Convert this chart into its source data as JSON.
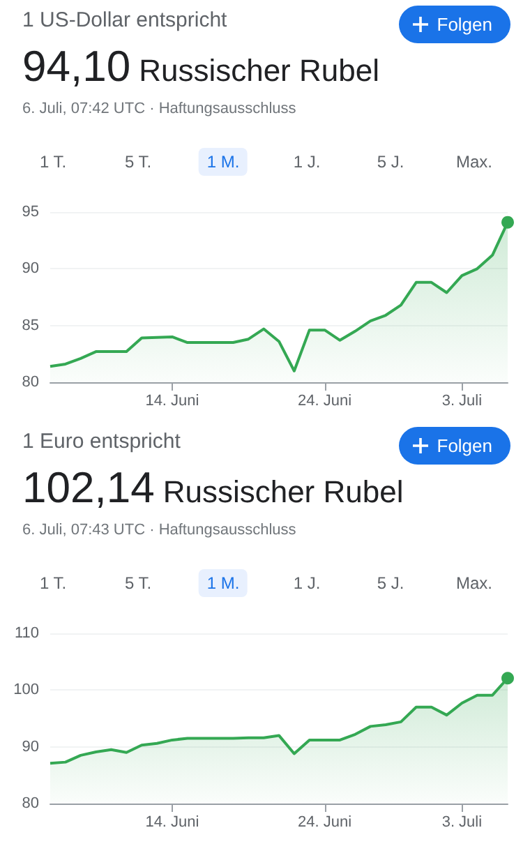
{
  "chart_data": [
    {
      "type": "area",
      "title": "1 US-Dollar entspricht",
      "subtitle": "94,10 Russischer Rubel",
      "annotations": [
        "6. Juli, 07:42 UTC · Haftungsausschluss",
        "Folgen",
        "1 T.",
        "5 T.",
        "1 M.",
        "1 J.",
        "5 J.",
        "Max."
      ],
      "x": [
        "--06-06",
        "--06-07",
        "--06-08",
        "--06-09",
        "--06-11",
        "--06-12",
        "--06-14",
        "--06-15",
        "--06-18",
        "--06-19",
        "--06-20",
        "--06-21",
        "--06-22",
        "--06-23",
        "--06-24",
        "--06-25",
        "--06-26",
        "--06-27",
        "--06-28",
        "--06-29",
        "--06-30",
        "--07-01",
        "--07-02",
        "--07-03",
        "--07-04",
        "--07-05",
        "--07-06"
      ],
      "series": [
        {
          "color": "#34a853",
          "values": [
            81.4,
            81.6,
            82.1,
            82.7,
            82.7,
            83.9,
            84.0,
            83.5,
            83.5,
            83.8,
            84.7,
            83.6,
            81.0,
            84.6,
            84.6,
            83.7,
            84.5,
            85.4,
            85.9,
            86.8,
            88.8,
            88.8,
            87.9,
            89.4,
            90.0,
            91.2,
            94.1
          ]
        }
      ],
      "xlim": [
        "--06-06",
        "--07-06"
      ],
      "xticks": [
        {
          "value": "--06-14",
          "label": "14. Juni"
        },
        {
          "value": "--06-24",
          "label": "24. Juni"
        },
        {
          "value": "--07-03",
          "label": "3. Juli"
        }
      ],
      "ylim": [
        80,
        95
      ],
      "yticks": [
        80,
        85,
        90,
        95
      ],
      "grid": "y",
      "marker": "none",
      "line_style": "solid"
    },
    {
      "type": "area",
      "title": "1 Euro entspricht",
      "subtitle": "102,14 Russischer Rubel",
      "annotations": [
        "6. Juli, 07:43 UTC · Haftungsausschluss",
        "Folgen",
        "1 T.",
        "5 T.",
        "1 M.",
        "1 J.",
        "5 J.",
        "Max."
      ],
      "x": [
        "--06-06",
        "--06-07",
        "--06-08",
        "--06-09",
        "--06-10",
        "--06-11",
        "--06-12",
        "--06-13",
        "--06-14",
        "--06-15",
        "--06-18",
        "--06-19",
        "--06-20",
        "--06-21",
        "--06-22",
        "--06-23",
        "--06-25",
        "--06-26",
        "--06-27",
        "--06-28",
        "--06-29",
        "--06-30",
        "--07-01",
        "--07-02",
        "--07-03",
        "--07-04",
        "--07-05",
        "--07-06"
      ],
      "series": [
        {
          "color": "#34a853",
          "values": [
            87.1,
            87.3,
            88.5,
            89.1,
            89.5,
            89.0,
            90.3,
            90.6,
            91.2,
            91.5,
            91.5,
            91.6,
            91.6,
            92.0,
            88.8,
            91.2,
            91.2,
            92.2,
            93.6,
            93.9,
            94.4,
            97.0,
            97.0,
            95.6,
            97.7,
            99.1,
            99.1,
            102.1
          ]
        }
      ],
      "xlim": [
        "--06-06",
        "--07-06"
      ],
      "xticks": [
        {
          "value": "--06-14",
          "label": "14. Juni"
        },
        {
          "value": "--06-24",
          "label": "24. Juni"
        },
        {
          "value": "--07-03",
          "label": "3. Juli"
        }
      ],
      "ylim": [
        80,
        110
      ],
      "yticks": [
        80,
        90,
        100,
        110
      ],
      "grid": "y",
      "marker": "none",
      "line_style": "solid"
    }
  ]
}
